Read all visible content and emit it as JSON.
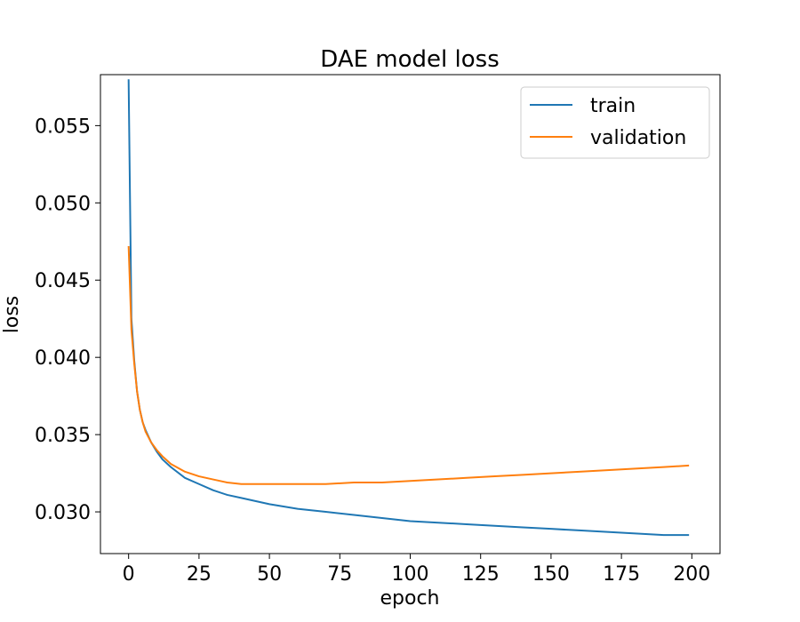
{
  "chart_data": {
    "type": "line",
    "title": "DAE model loss",
    "xlabel": "epoch",
    "ylabel": "loss",
    "xlim": [
      -10,
      210
    ],
    "ylim": [
      0.0273,
      0.0583
    ],
    "xticks": [
      0,
      25,
      50,
      75,
      100,
      125,
      150,
      175,
      200
    ],
    "yticks": [
      0.03,
      0.035,
      0.04,
      0.045,
      0.05,
      0.055
    ],
    "ytick_labels": [
      "0.030",
      "0.035",
      "0.040",
      "0.045",
      "0.050",
      "0.055"
    ],
    "grid": false,
    "legend": "top-right",
    "series": [
      {
        "name": "train",
        "color": "#1f77b4",
        "x": [
          0,
          1,
          2,
          3,
          4,
          5,
          6,
          8,
          10,
          12,
          15,
          20,
          25,
          30,
          35,
          40,
          50,
          60,
          70,
          80,
          90,
          100,
          110,
          120,
          130,
          140,
          150,
          160,
          170,
          180,
          190,
          199
        ],
        "y": [
          0.058,
          0.0425,
          0.0398,
          0.0378,
          0.0366,
          0.0358,
          0.0353,
          0.0345,
          0.0339,
          0.0334,
          0.0329,
          0.0322,
          0.0318,
          0.0314,
          0.0311,
          0.0309,
          0.0305,
          0.0302,
          0.03,
          0.0298,
          0.0296,
          0.0294,
          0.0293,
          0.0292,
          0.0291,
          0.029,
          0.0289,
          0.0288,
          0.0287,
          0.0286,
          0.0285,
          0.0285
        ]
      },
      {
        "name": "validation",
        "color": "#ff7f0e",
        "x": [
          0,
          1,
          2,
          3,
          4,
          5,
          6,
          8,
          10,
          12,
          15,
          20,
          25,
          30,
          35,
          40,
          50,
          60,
          70,
          80,
          90,
          100,
          110,
          120,
          130,
          140,
          150,
          160,
          170,
          180,
          190,
          199
        ],
        "y": [
          0.0472,
          0.0418,
          0.0396,
          0.0378,
          0.0366,
          0.0358,
          0.0352,
          0.0345,
          0.034,
          0.0336,
          0.0331,
          0.0326,
          0.0323,
          0.0321,
          0.0319,
          0.0318,
          0.0318,
          0.0318,
          0.0318,
          0.0319,
          0.0319,
          0.032,
          0.0321,
          0.0322,
          0.0323,
          0.0324,
          0.0325,
          0.0326,
          0.0327,
          0.0328,
          0.0329,
          0.033
        ]
      }
    ]
  }
}
